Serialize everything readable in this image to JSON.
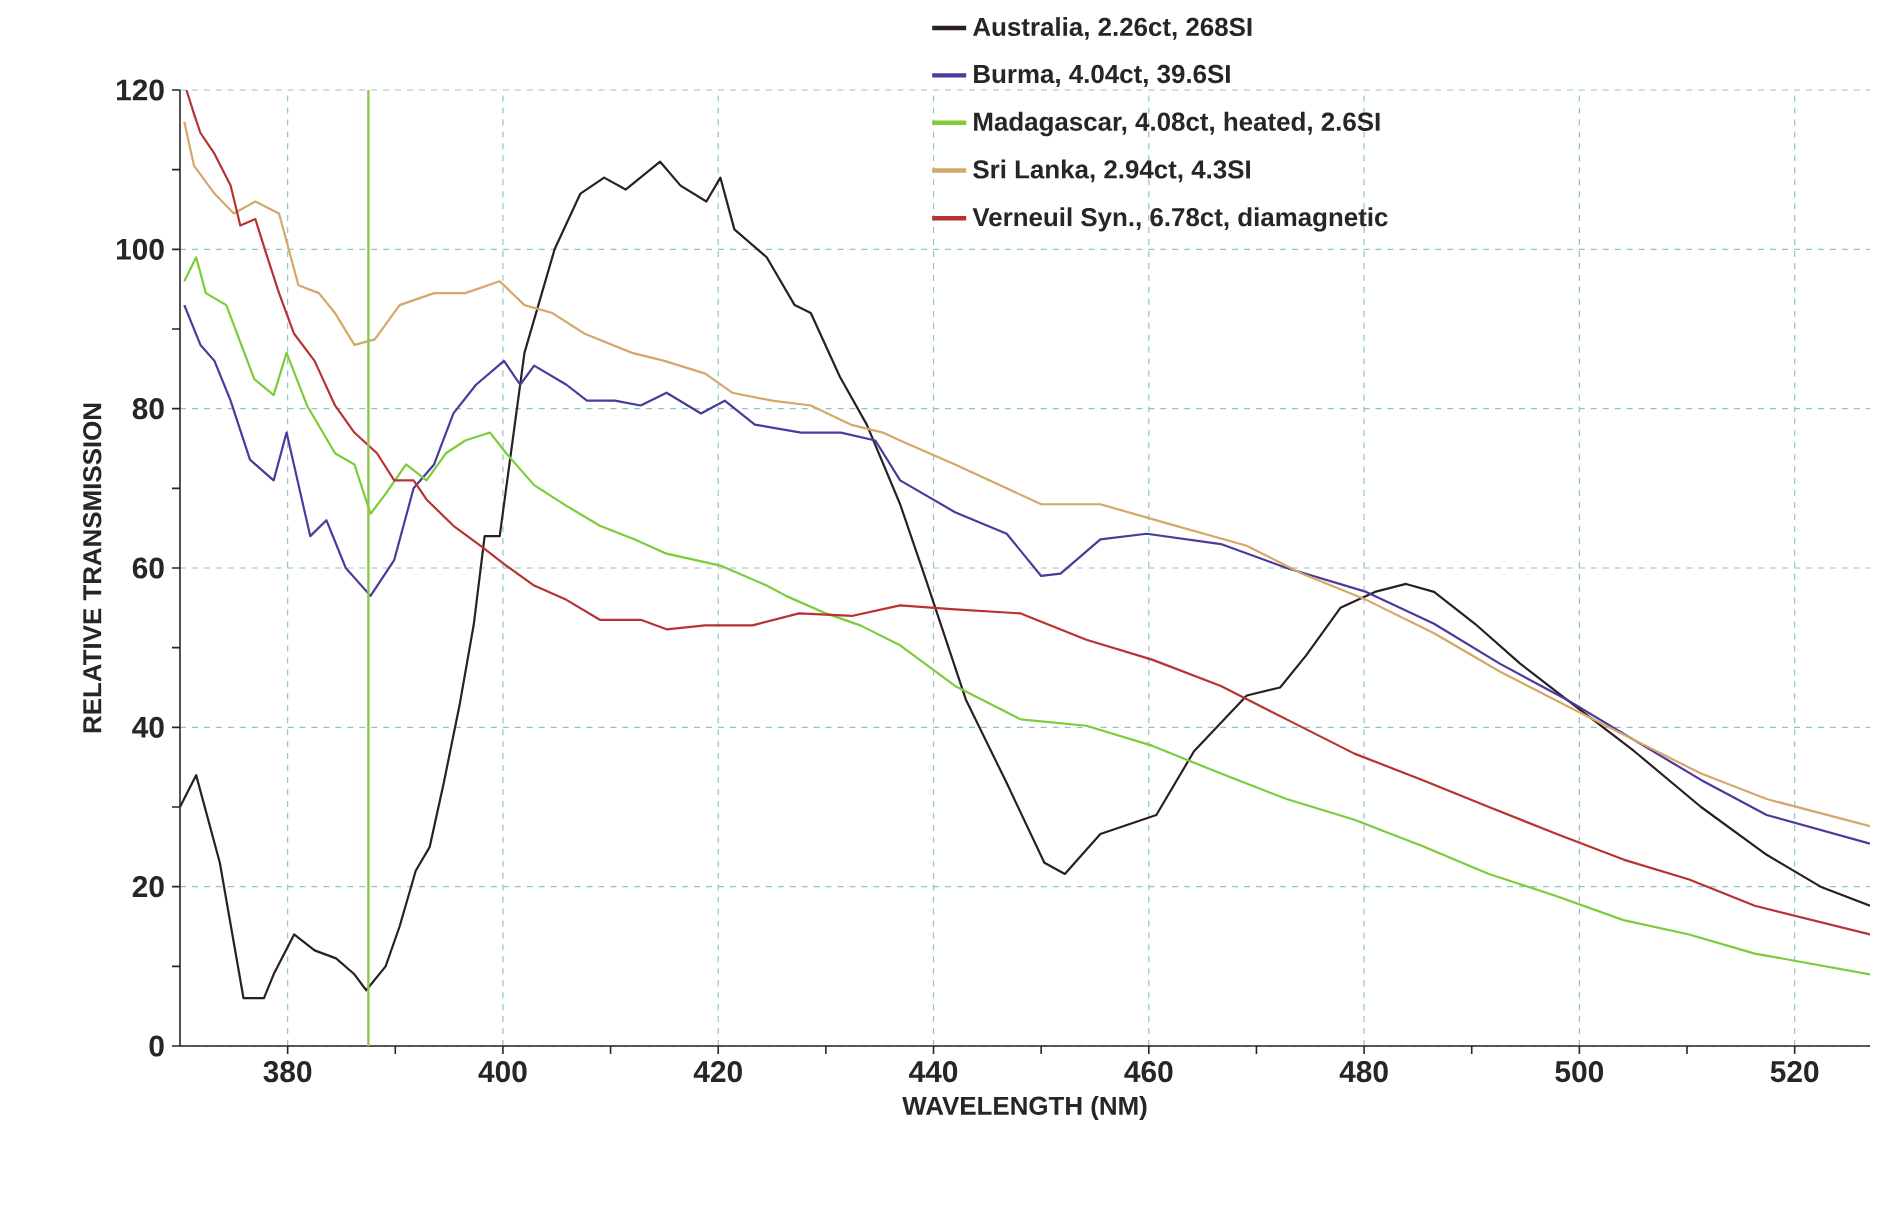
{
  "chart_data": {
    "type": "line",
    "xlabel": "WAVELENGTH (NM)",
    "ylabel": "RELATIVE TRANSMISSION",
    "xlim": [
      370,
      527
    ],
    "ylim": [
      0,
      120
    ],
    "xticks": [
      380,
      400,
      420,
      440,
      460,
      480,
      500,
      520
    ],
    "yticks": [
      0,
      20,
      40,
      60,
      80,
      100,
      120
    ],
    "grid": true,
    "legend": "top right",
    "ref_lines": [
      {
        "axis": "x",
        "value": 387.5,
        "color": "#8cc850"
      }
    ],
    "series": [
      {
        "name": "Australia, 2.26ct, 268SI",
        "color": "#2a1f24",
        "x": [
          370.0,
          371.5,
          373.7,
          375.9,
          377.8,
          378.7,
          380.6,
          382.5,
          384.5,
          386.2,
          387.3,
          389.1,
          390.4,
          391.9,
          393.2,
          394.5,
          396.0,
          397.3,
          398.3,
          399.7,
          402.0,
          404.8,
          407.2,
          409.4,
          411.4,
          414.6,
          416.5,
          418.9,
          420.2,
          421.5,
          424.5,
          427.1,
          428.6,
          431.3,
          433.8,
          436.9,
          439.3,
          443.0,
          446.8,
          450.3,
          452.2,
          455.5,
          460.7,
          464.2,
          469.1,
          472.2,
          474.6,
          477.8,
          481.0,
          483.9,
          486.5,
          490.3,
          494.5,
          498.8,
          505.1,
          511.3,
          517.4,
          522.4,
          527.0
        ],
        "values": [
          30,
          34,
          23,
          6,
          6,
          9,
          14,
          12,
          11,
          9,
          7,
          10,
          15,
          22,
          25,
          33,
          43,
          53,
          64,
          64,
          87,
          100,
          107,
          109,
          107.5,
          111,
          108,
          106,
          109,
          102.5,
          99,
          93,
          92,
          84,
          78,
          68,
          58.5,
          43.5,
          33,
          23,
          21.6,
          26.6,
          29,
          37,
          44,
          45,
          49,
          55,
          57,
          58,
          57,
          53,
          48,
          43.5,
          37,
          30,
          24,
          20,
          17.6
        ]
      },
      {
        "name": "Burma, 4.04ct, 39.6SI",
        "color": "#4a3a9a",
        "x": [
          370.4,
          371.9,
          373.2,
          374.7,
          376.5,
          378.7,
          379.9,
          382.1,
          383.6,
          385.4,
          387.7,
          389.9,
          391.7,
          393.6,
          395.4,
          397.5,
          400.1,
          401.6,
          402.9,
          405.9,
          407.8,
          410.4,
          412.8,
          415.2,
          418.4,
          420.6,
          423.4,
          427.7,
          431.4,
          434.6,
          436.9,
          442.0,
          446.8,
          450.0,
          451.8,
          455.5,
          459.8,
          466.7,
          472.8,
          480.2,
          486.5,
          492.6,
          498.8,
          505.1,
          511.3,
          517.4,
          527.0
        ],
        "values": [
          93,
          88,
          86,
          81,
          73.6,
          71,
          77,
          64,
          66,
          60,
          56.5,
          61,
          70,
          73,
          79.4,
          83,
          86,
          83,
          85.4,
          83,
          81,
          81,
          80.4,
          82,
          79.4,
          81,
          78,
          77,
          77,
          76,
          71,
          67,
          64.3,
          59,
          59.3,
          63.6,
          64.3,
          63,
          60,
          57,
          53,
          48,
          43.5,
          38.4,
          33.4,
          29,
          25.4
        ]
      },
      {
        "name": "Madagascar, 4.08ct, heated, 2.6SI",
        "color": "#7ccc3a",
        "x": [
          370.4,
          371.5,
          372.4,
          374.3,
          376.9,
          378.7,
          379.9,
          381.8,
          384.4,
          386.2,
          387.7,
          389.1,
          391.0,
          392.9,
          394.7,
          396.5,
          398.8,
          400.3,
          402.9,
          405.9,
          409.0,
          412.2,
          415.2,
          420.2,
          424.5,
          426.3,
          430.0,
          433.2,
          436.9,
          442.0,
          448.1,
          454.2,
          460.3,
          466.7,
          472.8,
          479.1,
          485.4,
          491.6,
          497.9,
          504.1,
          510.2,
          516.3,
          527.0
        ],
        "values": [
          96,
          99,
          94.5,
          93,
          83.7,
          81.7,
          87,
          80.4,
          74.4,
          73,
          66.8,
          69.3,
          73,
          71,
          74.4,
          76,
          77,
          74.4,
          70.4,
          67.8,
          65.3,
          63.6,
          61.8,
          60.3,
          57.8,
          56.5,
          54.3,
          52.8,
          50.3,
          45.2,
          41,
          40.2,
          37.7,
          34.2,
          31,
          28.4,
          25.1,
          21.6,
          18.8,
          15.8,
          14,
          11.6,
          9
        ]
      },
      {
        "name": "Sri Lanka, 2.94ct, 4.3SI",
        "color": "#d4a868",
        "x": [
          370.4,
          371.3,
          373.2,
          375.0,
          377.0,
          379.2,
          381.0,
          382.9,
          384.4,
          386.2,
          388.1,
          390.4,
          393.6,
          396.5,
          399.7,
          402.0,
          404.6,
          407.6,
          412.0,
          415.0,
          418.8,
          421.3,
          425.0,
          428.6,
          432.3,
          435.3,
          436.9,
          442.0,
          450.0,
          455.5,
          461.7,
          469.1,
          474.2,
          480.2,
          486.5,
          492.6,
          498.8,
          505.1,
          511.3,
          517.4,
          527.0
        ],
        "values": [
          116,
          110.5,
          107,
          104.5,
          106,
          104.5,
          95.5,
          94.5,
          92,
          88,
          88.7,
          93,
          94.5,
          94.5,
          96,
          93,
          92,
          89.4,
          87,
          86,
          84.4,
          82,
          81,
          80.4,
          78,
          77,
          76,
          73,
          68,
          68,
          65.6,
          62.8,
          59.3,
          56,
          51.8,
          47,
          42.7,
          38.4,
          34.2,
          31,
          27.6
        ]
      },
      {
        "name": "Verneuil Syn., 6.78ct, diamagnetic",
        "color": "#b83232",
        "x": [
          370.6,
          371.3,
          371.9,
          373.2,
          374.7,
          375.6,
          377.0,
          378.0,
          379.2,
          380.6,
          382.5,
          384.4,
          386.2,
          388.3,
          389.9,
          391.7,
          392.9,
          395.4,
          397.9,
          400.3,
          402.9,
          405.9,
          409.0,
          412.8,
          415.2,
          418.8,
          423.2,
          427.5,
          432.5,
          436.9,
          442.0,
          448.1,
          454.2,
          460.3,
          466.7,
          472.8,
          479.1,
          485.4,
          491.6,
          497.9,
          504.1,
          510.2,
          516.3,
          527.0
        ],
        "values": [
          120,
          117,
          114.6,
          112,
          108,
          103,
          103.8,
          99.5,
          94.5,
          89.4,
          86,
          80.4,
          77,
          74.4,
          71,
          71,
          68.6,
          65.3,
          62.8,
          60.3,
          57.8,
          56,
          53.5,
          53.5,
          52.3,
          52.8,
          52.8,
          54.3,
          54,
          55.3,
          54.8,
          54.3,
          51,
          48.5,
          45.2,
          41,
          36.7,
          33.4,
          30,
          26.6,
          23.4,
          20.9,
          17.6,
          14
        ]
      }
    ]
  }
}
